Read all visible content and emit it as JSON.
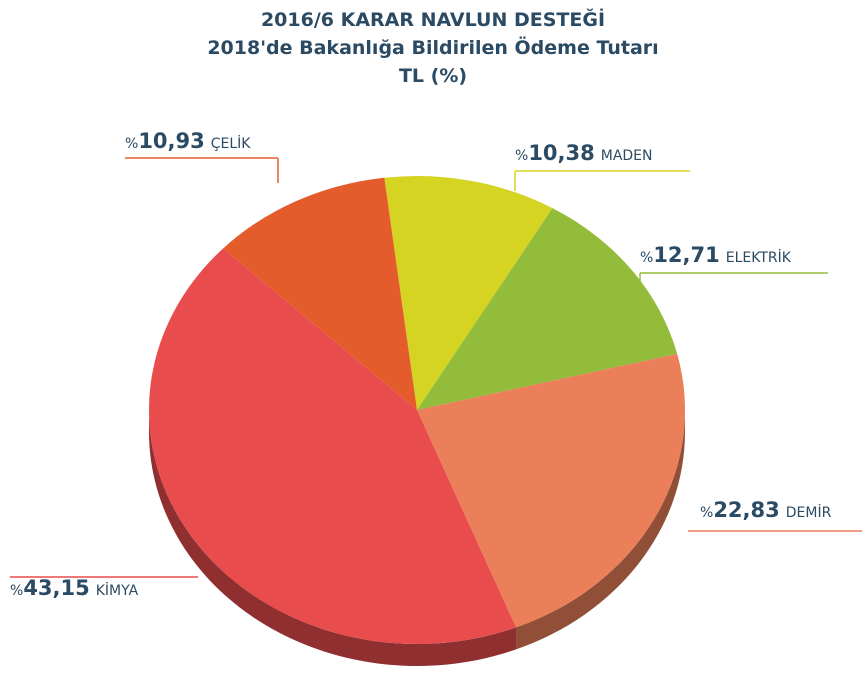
{
  "chart_data": {
    "type": "pie",
    "title": [
      "2016/6 KARAR NAVLUN DESTEĞİ",
      "2018'de Bakanlığa Bildirilen Ödeme Tutarı",
      "TL (%)"
    ],
    "categories": [
      "MADEN",
      "ELEKTRİK",
      "DEMİR",
      "KİMYA",
      "ÇELİK"
    ],
    "values": [
      10.38,
      12.71,
      22.83,
      43.15,
      10.93
    ],
    "value_labels": [
      "%10,38",
      "%12,71",
      "%22,83",
      "%43,15",
      "%10,93"
    ],
    "colors": [
      "#d5d423",
      "#93bc3b",
      "#ea7f5a",
      "#e84c4d",
      "#e55c2c"
    ]
  }
}
